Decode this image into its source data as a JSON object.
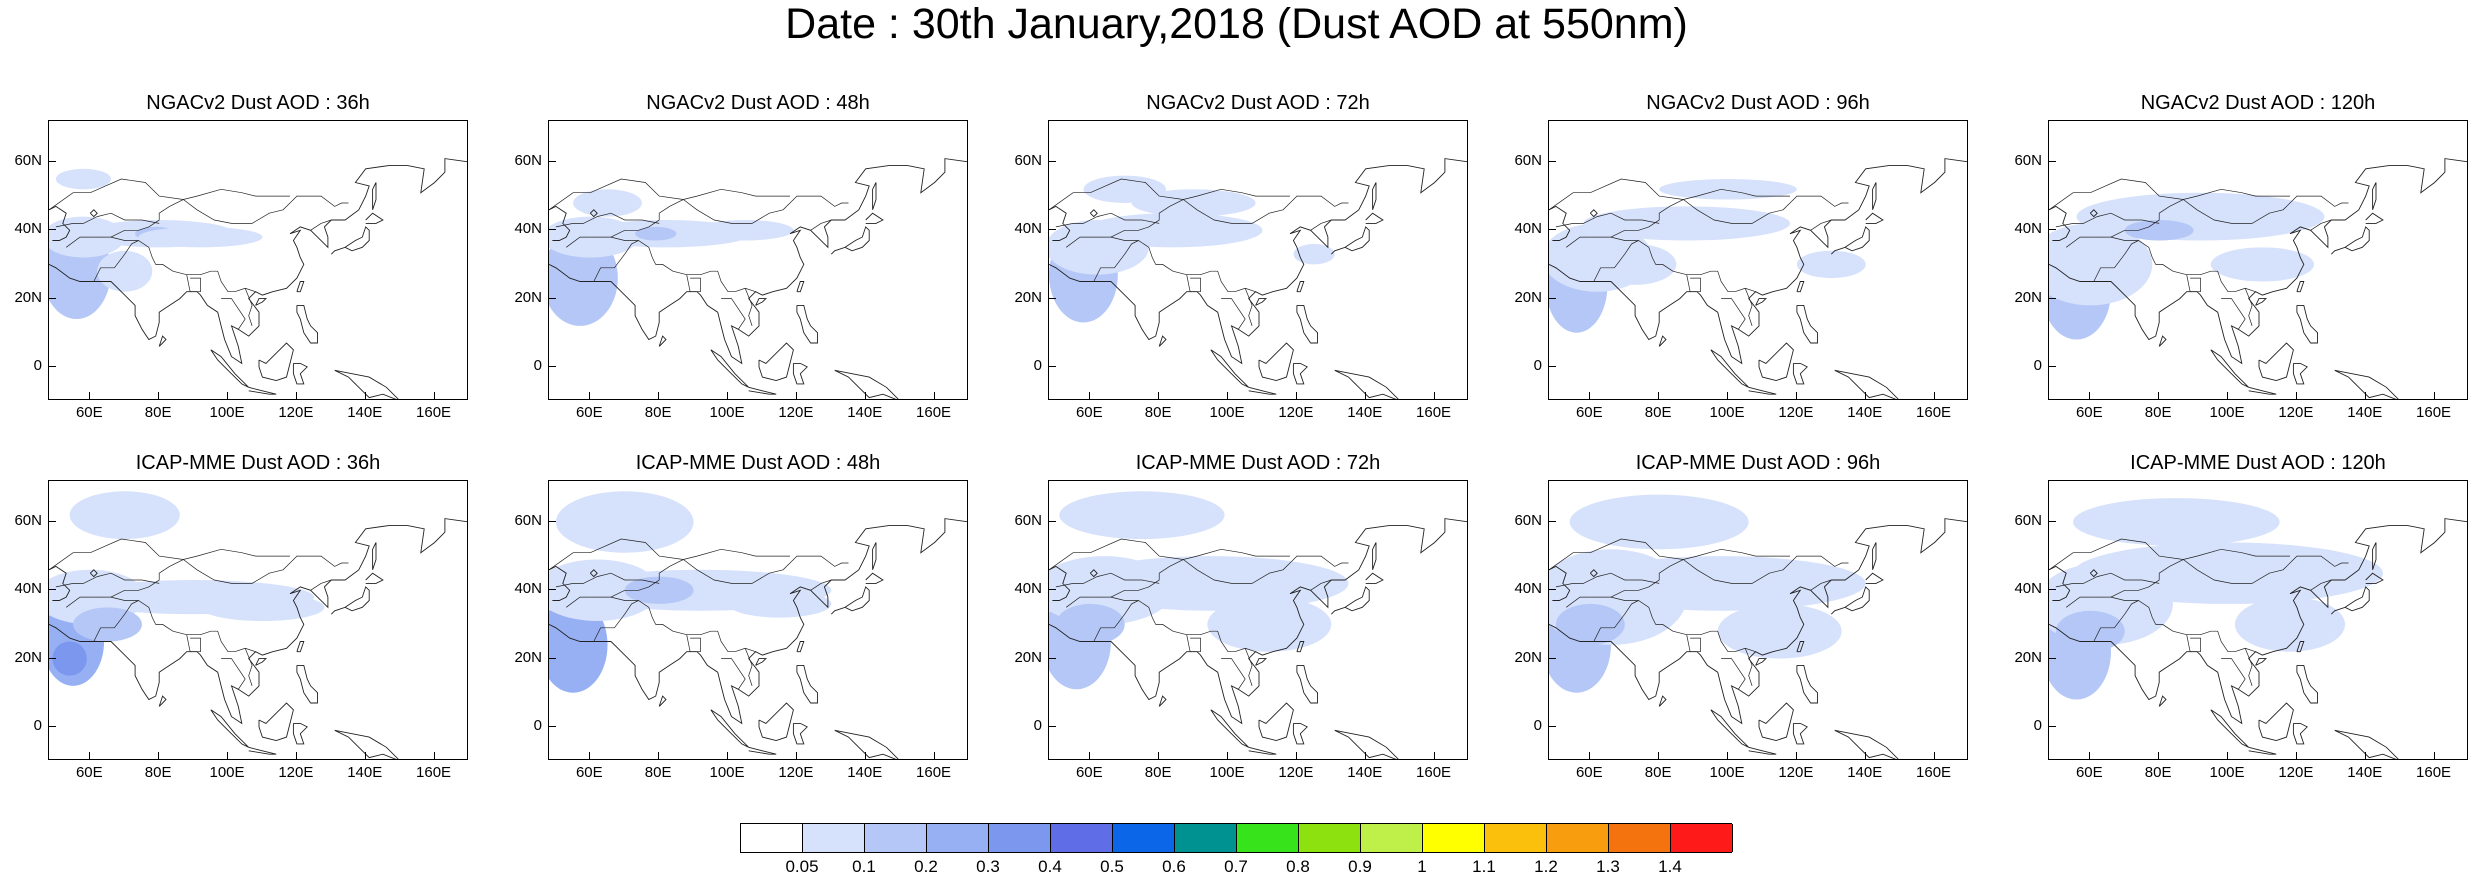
{
  "title": "Date : 30th January,2018 (Dust AOD at 550nm)",
  "panels": [
    {
      "title": "NGACv2 Dust AOD : 36h",
      "model": "NGACv2",
      "lead": "36h"
    },
    {
      "title": "NGACv2 Dust AOD : 48h",
      "model": "NGACv2",
      "lead": "48h"
    },
    {
      "title": "NGACv2 Dust AOD : 72h",
      "model": "NGACv2",
      "lead": "72h"
    },
    {
      "title": "NGACv2 Dust AOD : 96h",
      "model": "NGACv2",
      "lead": "96h"
    },
    {
      "title": "NGACv2 Dust AOD : 120h",
      "model": "NGACv2",
      "lead": "120h"
    },
    {
      "title": "ICAP-MME Dust AOD : 36h",
      "model": "ICAP-MME",
      "lead": "36h"
    },
    {
      "title": "ICAP-MME Dust AOD : 48h",
      "model": "ICAP-MME",
      "lead": "48h"
    },
    {
      "title": "ICAP-MME Dust AOD : 72h",
      "model": "ICAP-MME",
      "lead": "72h"
    },
    {
      "title": "ICAP-MME Dust AOD : 96h",
      "model": "ICAP-MME",
      "lead": "96h"
    },
    {
      "title": "ICAP-MME Dust AOD : 120h",
      "model": "ICAP-MME",
      "lead": "120h"
    }
  ],
  "lat_labels": [
    "60N",
    "40N",
    "20N",
    "0"
  ],
  "lat_values": [
    60,
    40,
    20,
    0
  ],
  "lon_labels": [
    "60E",
    "80E",
    "100E",
    "120E",
    "140E",
    "160E"
  ],
  "lon_values": [
    60,
    80,
    100,
    120,
    140,
    160
  ],
  "map_extent": {
    "lon": [
      48,
      170
    ],
    "lat": [
      -10,
      72
    ]
  },
  "colorbar": {
    "labels": [
      "0.05",
      "0.1",
      "0.2",
      "0.3",
      "0.4",
      "0.5",
      "0.6",
      "0.7",
      "0.8",
      "0.9",
      "1",
      "1.1",
      "1.2",
      "1.3",
      "1.4"
    ],
    "colors": [
      "#ffffff",
      "#d6e1fb",
      "#b4c7f6",
      "#97b0f3",
      "#7b97ee",
      "#5f6ee6",
      "#0b66e8",
      "#009191",
      "#37e31b",
      "#8ce10f",
      "#bff04a",
      "#ffff00",
      "#fbc00b",
      "#f89d0e",
      "#f4730e",
      "#ff1a1a"
    ]
  }
}
